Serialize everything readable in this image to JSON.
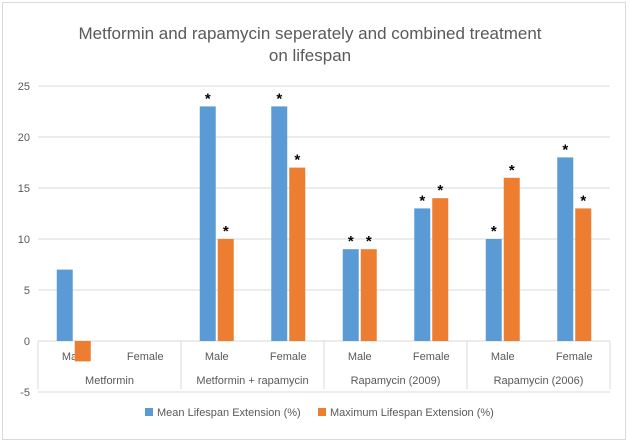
{
  "chart_data": {
    "type": "bar",
    "title": "Metformin and rapamycin seperately and combined treatment on lifespan",
    "title_lines": [
      "Metformin and rapamycin seperately and combined treatment",
      "on lifespan"
    ],
    "xlabel": "",
    "ylabel": "",
    "ylim": [
      -5,
      25
    ],
    "yticks": [
      -5,
      0,
      5,
      10,
      15,
      20,
      25
    ],
    "groups": [
      {
        "label": "Metformin",
        "categories": [
          "Male",
          "Female"
        ]
      },
      {
        "label": "Metformin + rapamycin",
        "categories": [
          "Male",
          "Female"
        ]
      },
      {
        "label": "Rapamycin (2009)",
        "categories": [
          "Male",
          "Female"
        ]
      },
      {
        "label": "Rapamycin (2006)",
        "categories": [
          "Male",
          "Female"
        ]
      }
    ],
    "series": [
      {
        "name": "Mean Lifespan Extension (%)",
        "color": "#5b9bd5",
        "values": [
          7,
          null,
          23,
          23,
          9,
          13,
          10,
          18
        ],
        "significant": [
          false,
          false,
          true,
          true,
          true,
          true,
          true,
          true
        ]
      },
      {
        "name": "Maximum Lifespan Extension (%)",
        "color": "#ed7d31",
        "values": [
          -2,
          null,
          10,
          17,
          9,
          14,
          16,
          13
        ],
        "significant": [
          false,
          false,
          true,
          true,
          true,
          true,
          true,
          true
        ]
      }
    ],
    "significance_marker": "*",
    "grid": true,
    "legend_position": "bottom"
  }
}
